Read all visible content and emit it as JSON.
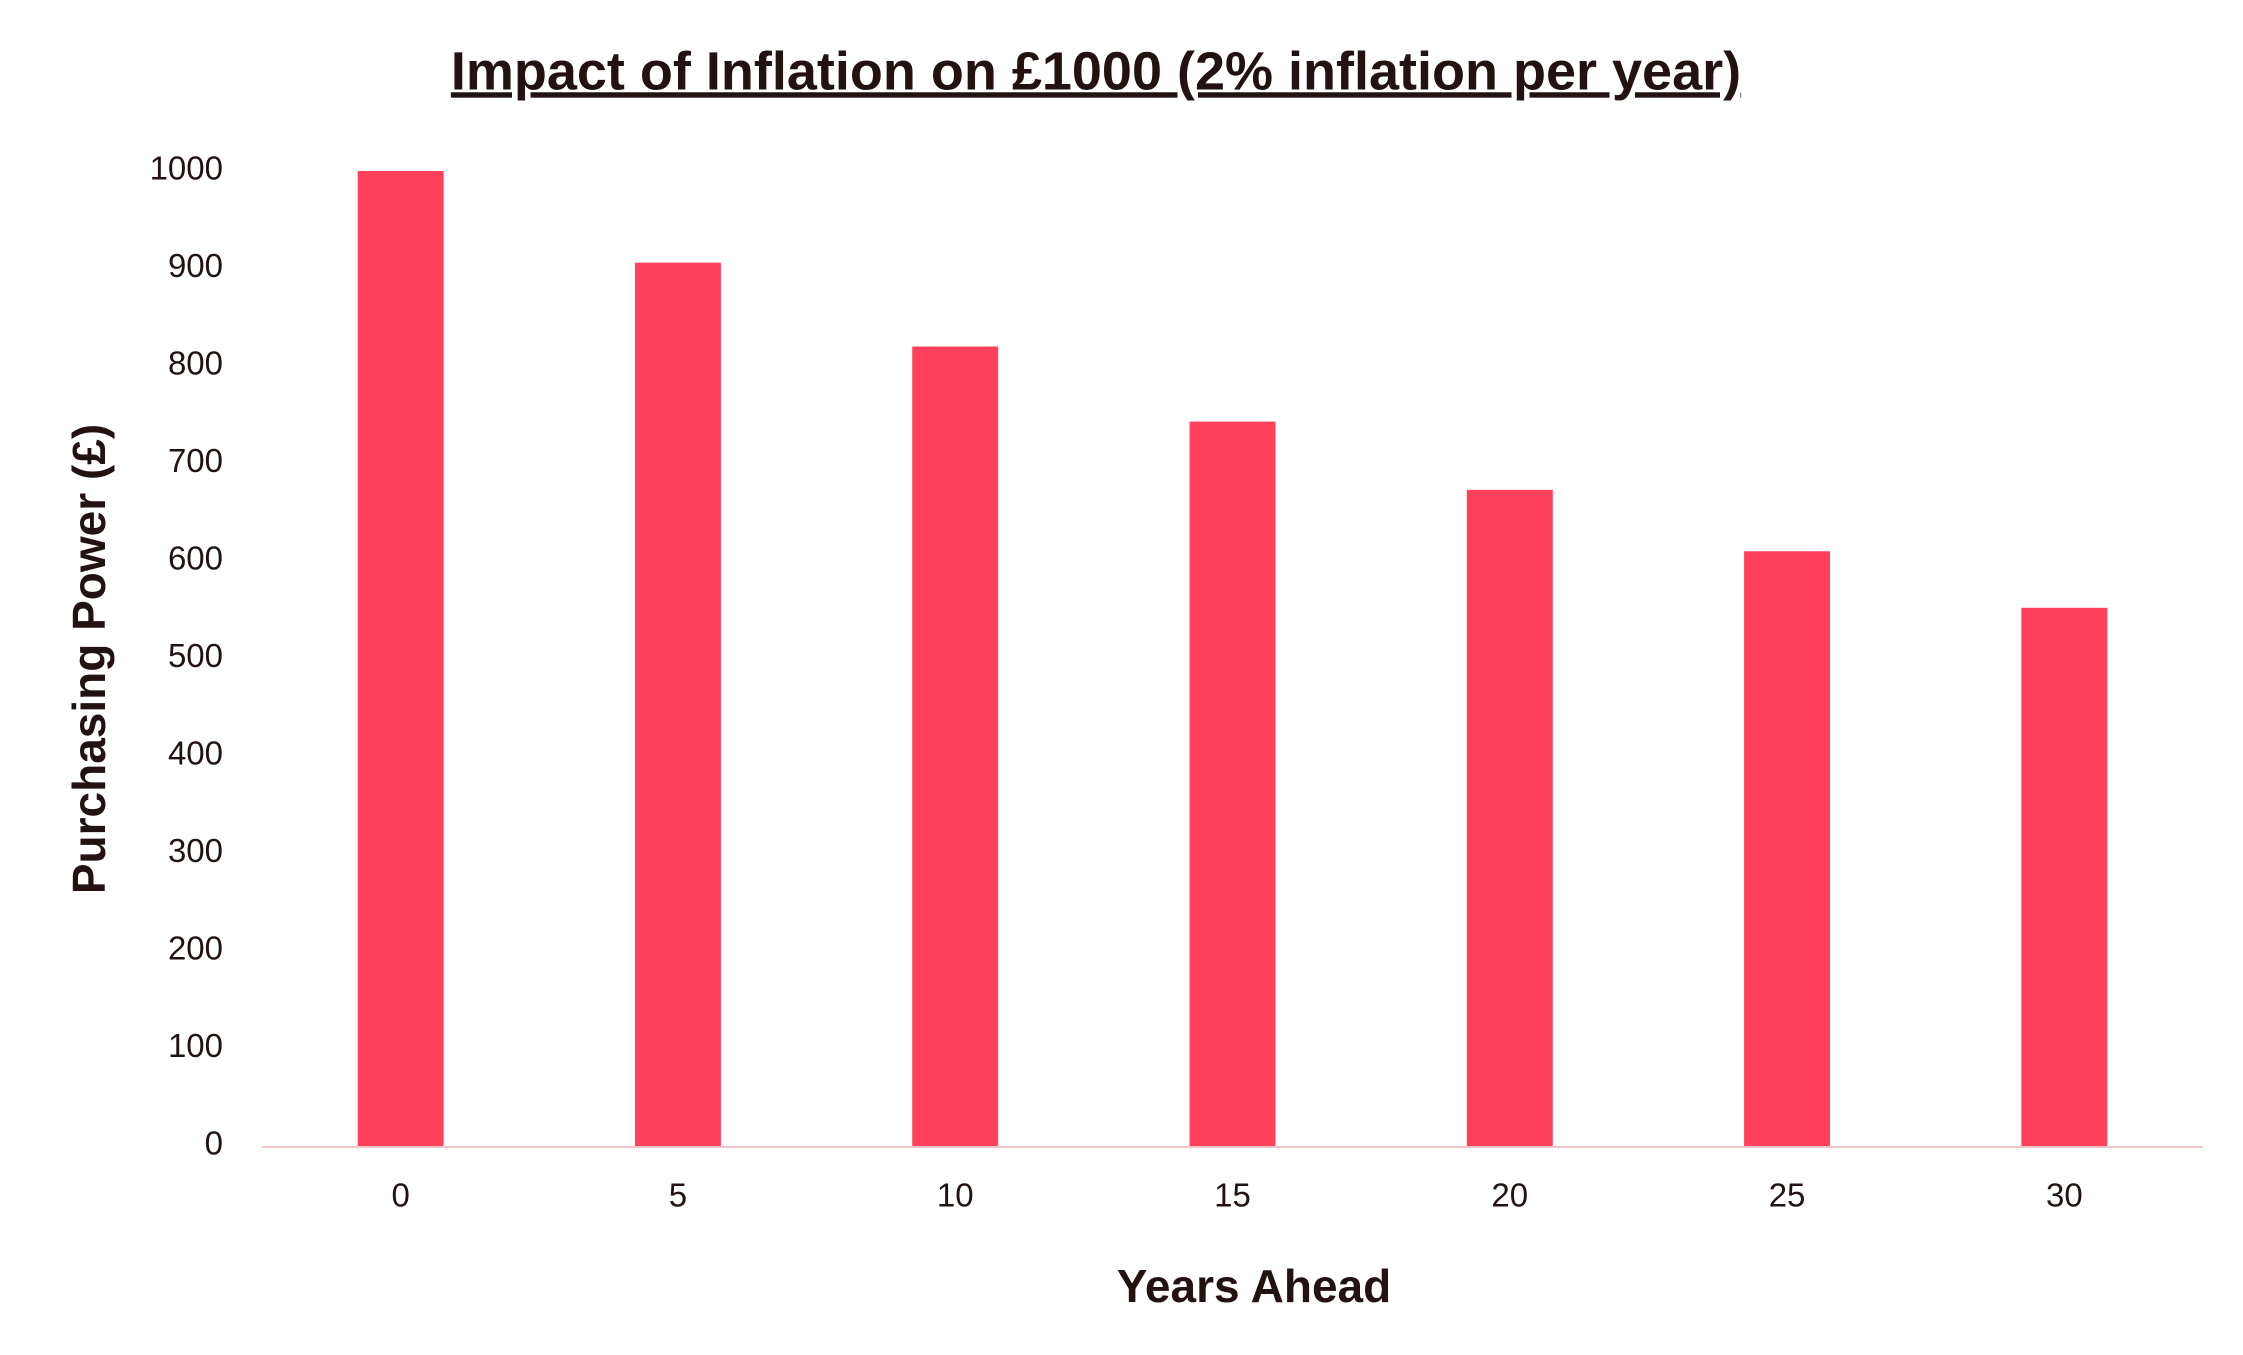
{
  "chart_data": {
    "type": "bar",
    "title": "Impact of Inflation on £1000 (2% inflation per year)",
    "x_label": "Years Ahead",
    "y_label": "Purchasing Power (£)",
    "categories": [
      0,
      5,
      10,
      15,
      20,
      25,
      30
    ],
    "values": [
      1000,
      906,
      820,
      743,
      673,
      610,
      552
    ],
    "color": "#ff415b",
    "ylim": [
      0,
      1000
    ],
    "yticks": [
      0,
      100,
      200,
      300,
      400,
      500,
      600,
      700,
      800,
      900,
      1000
    ],
    "grid": false
  }
}
